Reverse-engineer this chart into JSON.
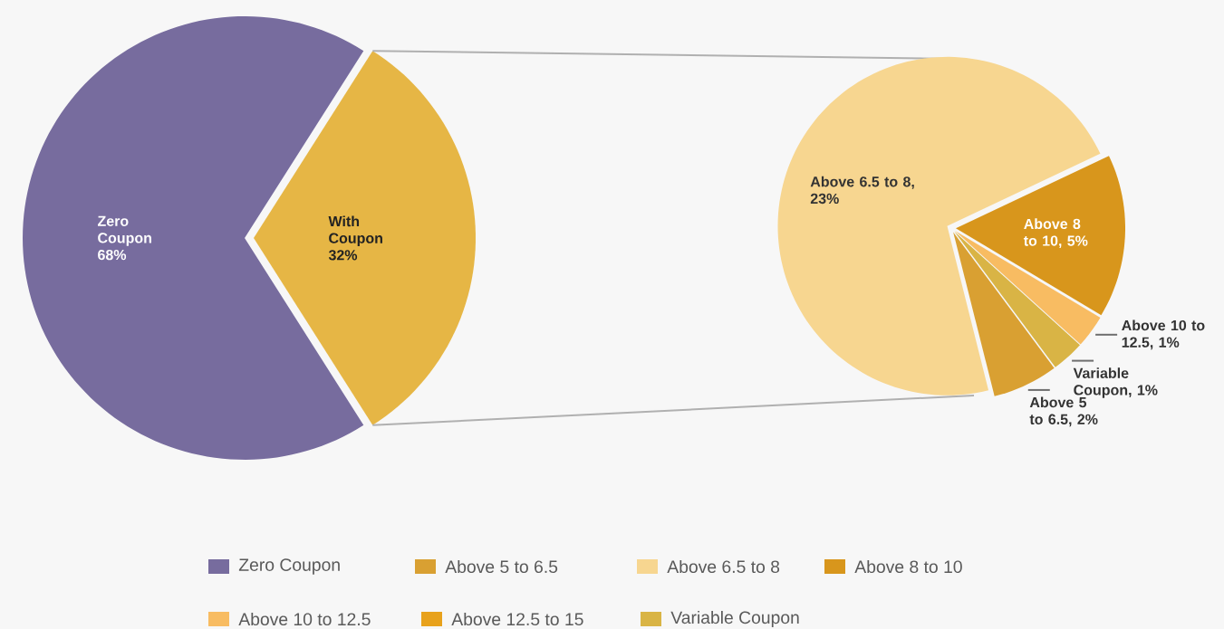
{
  "chart_data": [
    {
      "type": "pie",
      "categories": [
        "Zero Coupon",
        "With Coupon"
      ],
      "values": [
        68,
        32
      ],
      "colors": [
        "#776c9e",
        "#e6b645"
      ],
      "value_labels": [
        "68%",
        "32%"
      ]
    },
    {
      "type": "pie",
      "categories": [
        "Zero Coupon",
        "Above 5 to 6.5",
        "Above 6.5 to 8",
        "Above 8 to 10",
        "Above 10 to 12.5",
        "Above 12.5 to 15",
        "Variable Coupon"
      ],
      "values": [
        null,
        2,
        23,
        5,
        1,
        null,
        1
      ],
      "colors": [
        "#776c9e",
        "#d9a032",
        "#f7d690",
        "#d8961c",
        "#f8bc62",
        "#e8a21c",
        "#d9b445"
      ],
      "value_labels": [
        null,
        "Above 5 to 6.5, 2%",
        "Above 6.5 to 8, 23%",
        "Above 8 to 10, 5%",
        "Above 10 to 12.5, 1%",
        null,
        "Variable Coupon, 1%"
      ],
      "legend": "bottom"
    }
  ]
}
